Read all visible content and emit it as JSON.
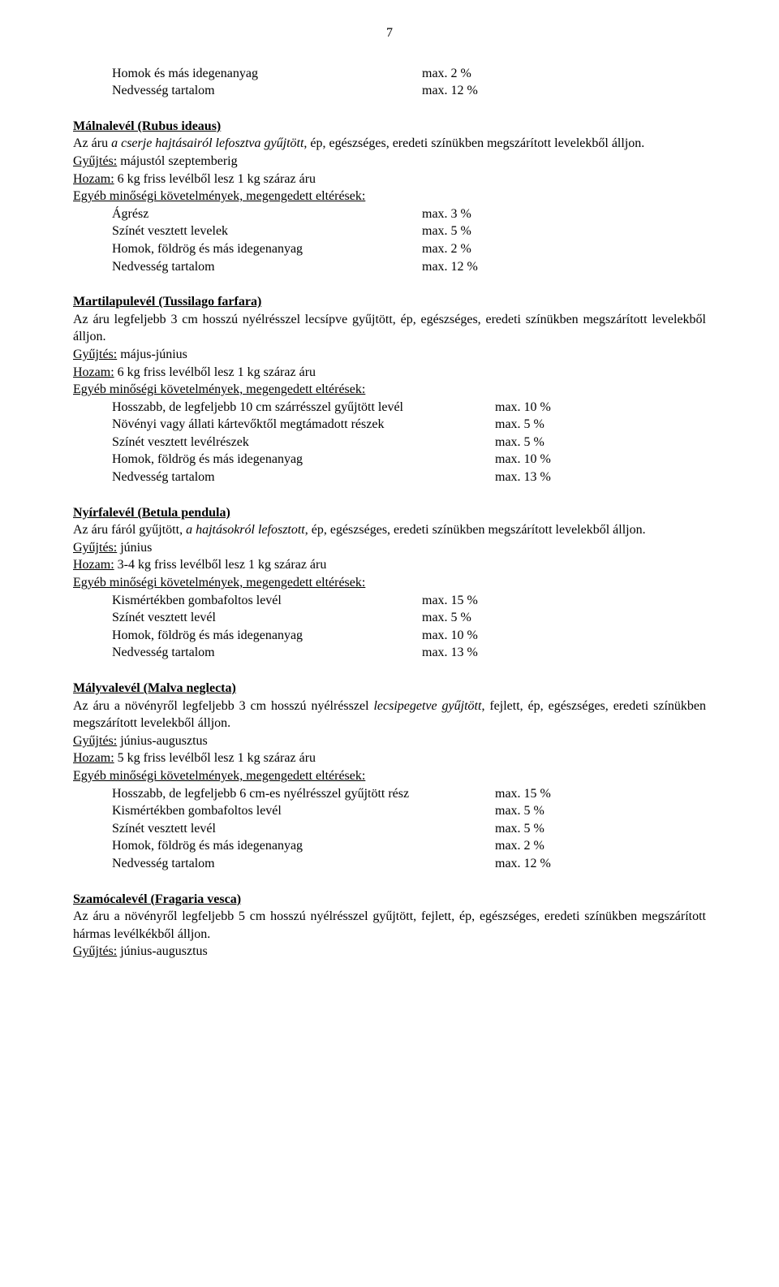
{
  "page_number": "7",
  "intro": {
    "rows": [
      {
        "label": "Homok és más idegenanyag",
        "value": "max.  2 %"
      },
      {
        "label": "Nedvesség tartalom",
        "value": "max. 12 %"
      }
    ]
  },
  "sections": [
    {
      "heading_u_b": "Málnalevél (Rubus ideaus)",
      "desc_parts": [
        {
          "t": "Az áru ",
          "i": false
        },
        {
          "t": "a cserje hajtásairól lefosztva gyűjtött",
          "i": true
        },
        {
          "t": ", ép, egészséges, eredeti színükben megszárított levelekből álljon.",
          "i": false
        }
      ],
      "collect_u": "Gyűjtés:",
      "collect": " májustól szeptemberig",
      "yield_u": "Hozam:",
      "yield": " 6 kg friss levélből lesz 1 kg száraz áru",
      "req_u": "Egyéb minőségi követelmények, megengedett eltérések:",
      "rows": [
        {
          "label": "Ágrész",
          "value": "max.  3 %"
        },
        {
          "label": "Színét vesztett levelek",
          "value": "max.  5 %"
        },
        {
          "label": "Homok, földrög és más idegenanyag",
          "value": "max.  2 %"
        },
        {
          "label": "Nedvesség tartalom",
          "value": "max. 12 %"
        }
      ],
      "wide": false
    },
    {
      "heading_u_b": "Martilapulevél (Tussilago farfara)",
      "desc_parts": [
        {
          "t": "Az áru legfeljebb 3 cm hosszú nyélrésszel lecsípve gyűjtött, ép, egészséges, eredeti színükben megszárított levelekből álljon.",
          "i": false
        }
      ],
      "collect_u": "Gyűjtés:",
      "collect": " május-június",
      "yield_u": "Hozam:",
      "yield": " 6 kg friss levélből lesz 1 kg száraz áru",
      "req_u": "Egyéb minőségi követelmények, megengedett eltérések:",
      "rows": [
        {
          "label": "Hosszabb, de legfeljebb 10 cm szárrésszel gyűjtött levél",
          "value": "max. 10 %"
        },
        {
          "label": "Növényi vagy állati kártevőktől megtámadott részek",
          "value": "max.  5 %"
        },
        {
          "label": "Színét vesztett levélrészek",
          "value": "max.  5 %"
        },
        {
          "label": "Homok, földrög és más idegenanyag",
          "value": "max. 10 %"
        },
        {
          "label": "Nedvesség tartalom",
          "value": "max. 13 %"
        }
      ],
      "wide": true
    },
    {
      "heading_u_b": "Nyírfalevél (Betula pendula)",
      "desc_parts": [
        {
          "t": "Az áru fáról gyűjtött, ",
          "i": false
        },
        {
          "t": "a hajtásokról lefosztott",
          "i": true
        },
        {
          "t": ", ép, egészséges, eredeti színükben megszárított levelekből álljon.",
          "i": false
        }
      ],
      "collect_u": "Gyűjtés:",
      "collect": " június",
      "yield_u": "Hozam:",
      "yield": " 3-4 kg friss levélből lesz 1 kg száraz áru",
      "req_u": "Egyéb minőségi követelmények, megengedett eltérések:",
      "rows": [
        {
          "label": "Kismértékben gombafoltos levél",
          "value": "max. 15 %"
        },
        {
          "label": "Színét vesztett levél",
          "value": "max.  5 %"
        },
        {
          "label": "Homok, földrög és más idegenanyag",
          "value": "max. 10 %"
        },
        {
          "label": "Nedvesség tartalom",
          "value": "max. 13 %"
        }
      ],
      "wide": false
    },
    {
      "heading_u_b": "Mályvalevél (Malva neglecta)",
      "desc_parts": [
        {
          "t": "Az áru a növényről legfeljebb 3 cm hosszú nyélrésszel ",
          "i": false
        },
        {
          "t": "lecsipegetve gyűjtött",
          "i": true
        },
        {
          "t": ", fejlett, ép, egészséges, eredeti színükben megszárított levelekből álljon.",
          "i": false
        }
      ],
      "collect_u": "Gyűjtés:",
      "collect": " június-augusztus",
      "yield_u": "Hozam:",
      "yield": " 5 kg friss levélből lesz 1 kg száraz áru",
      "req_u": "Egyéb minőségi követelmények, megengedett eltérések:",
      "rows": [
        {
          "label": "Hosszabb, de legfeljebb 6 cm-es nyélrésszel gyűjtött rész",
          "value": "max. 15 %"
        },
        {
          "label": "Kismértékben gombafoltos levél",
          "value": "max.  5 %"
        },
        {
          "label": "Színét vesztett levél",
          "value": "max.  5 %"
        },
        {
          "label": "Homok, földrög és más idegenanyag",
          "value": "max.  2 %"
        },
        {
          "label": "Nedvesség tartalom",
          "value": "max. 12 %"
        }
      ],
      "wide": true
    }
  ],
  "last": {
    "heading_u_b": "Szamócalevél (Fragaria vesca)",
    "desc": "Az áru a növényről legfeljebb 5 cm hosszú nyélrésszel gyűjtött, fejlett, ép, egészséges, eredeti színükben megszárított hármas levélkékből álljon.",
    "collect_u": "Gyűjtés:",
    "collect": " június-augusztus"
  }
}
